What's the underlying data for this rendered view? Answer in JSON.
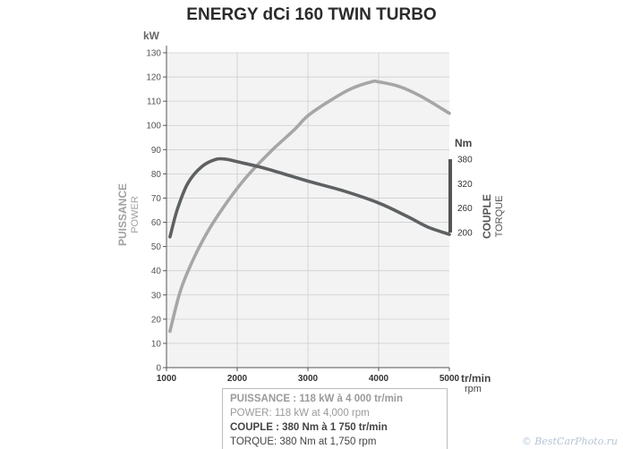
{
  "chart_data": {
    "type": "line",
    "title": "ENERGY dCi 160 TWIN TURBO",
    "x_unit_main": "tr/min",
    "x_unit_sub": "rpm",
    "x_ticks": [
      1000,
      2000,
      3000,
      4000,
      5000
    ],
    "xlim": [
      1000,
      5000
    ],
    "y_left": {
      "unit": "kW",
      "label_bold": "PUISSANCE",
      "label_light": "POWER",
      "ticks": [
        0,
        10,
        20,
        30,
        40,
        50,
        60,
        70,
        80,
        90,
        100,
        110,
        120,
        130
      ],
      "ylim": [
        0,
        130
      ]
    },
    "y_right": {
      "unit": "Nm",
      "label_bold": "COUPLE",
      "label_light": "TORQUE",
      "ticks": [
        200,
        260,
        320,
        380
      ],
      "ylim": [
        200,
        380
      ]
    },
    "grid": true,
    "series": [
      {
        "name": "PUISSANCE",
        "axis": "left",
        "color": "#a6a6a6",
        "points": [
          [
            1050,
            15
          ],
          [
            1200,
            32
          ],
          [
            1400,
            46
          ],
          [
            1600,
            57
          ],
          [
            1800,
            66
          ],
          [
            2000,
            74
          ],
          [
            2200,
            81
          ],
          [
            2500,
            90
          ],
          [
            2800,
            98
          ],
          [
            3000,
            104
          ],
          [
            3300,
            110
          ],
          [
            3600,
            115
          ],
          [
            3900,
            118
          ],
          [
            4000,
            118
          ],
          [
            4300,
            116
          ],
          [
            4600,
            112
          ],
          [
            5000,
            105
          ]
        ]
      },
      {
        "name": "COUPLE",
        "axis": "right",
        "color": "#5e6163",
        "points": [
          [
            1050,
            54
          ],
          [
            1150,
            65
          ],
          [
            1300,
            76
          ],
          [
            1500,
            83
          ],
          [
            1700,
            86
          ],
          [
            1850,
            86
          ],
          [
            2000,
            85
          ],
          [
            2300,
            83
          ],
          [
            2600,
            80.5
          ],
          [
            3000,
            77
          ],
          [
            3500,
            73
          ],
          [
            4000,
            68
          ],
          [
            4400,
            62.5
          ],
          [
            4700,
            58
          ],
          [
            5000,
            55
          ]
        ]
      }
    ]
  },
  "legend": {
    "power_fr_bold": "PUISSANCE :",
    "power_fr_rest": "118 kW à 4 000 tr/min",
    "power_en": "POWER: 118 kW at 4,000 rpm",
    "torque_fr_bold": "COUPLE : 380 Nm à 1 750 tr/min",
    "torque_en": "TORQUE: 380 Nm at 1,750 rpm"
  },
  "watermark": "© BestCarPhoto.ru"
}
